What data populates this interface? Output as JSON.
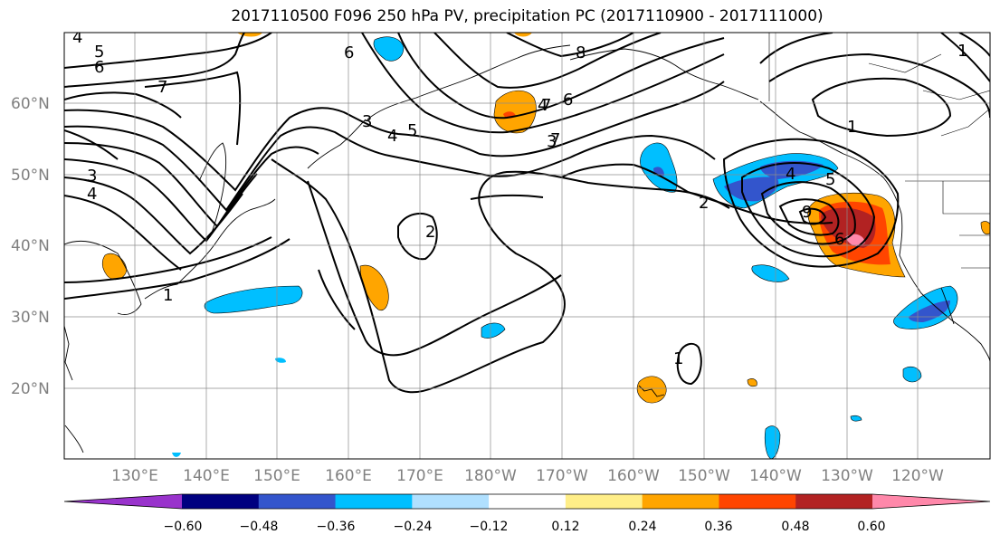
{
  "title": "2017110500 F096 250 hPa PV, precipitation PC (2017110900 - 2017111000)",
  "lat_labels": [
    "60°N",
    "50°N",
    "40°N",
    "30°N",
    "20°N"
  ],
  "lon_labels": [
    "130°E",
    "140°E",
    "150°E",
    "160°E",
    "170°E",
    "180°W",
    "170°W",
    "160°W",
    "150°W",
    "140°W",
    "130°W",
    "120°W"
  ],
  "colorbar": {
    "colors": [
      "#9933cc",
      "#000080",
      "#3355cc",
      "#00bfff",
      "#b0e0ff",
      "#ffffff",
      "#ffee88",
      "#ffa500",
      "#ff4500",
      "#b22222",
      "#ff88aa"
    ],
    "tick_labels": [
      "−0.60",
      "−0.48",
      "−0.36",
      "−0.24",
      "−0.12",
      "0.12",
      "0.24",
      "0.36",
      "0.48",
      "0.60"
    ]
  },
  "contour_labels": [
    "4",
    "5",
    "6",
    "7",
    "3",
    "4",
    "1",
    "6",
    "5",
    "4",
    "3",
    "2",
    "4",
    "7",
    "8",
    "7",
    "6",
    "3",
    "2",
    "1",
    "4",
    "5",
    "9",
    "6",
    "1",
    "1"
  ]
}
